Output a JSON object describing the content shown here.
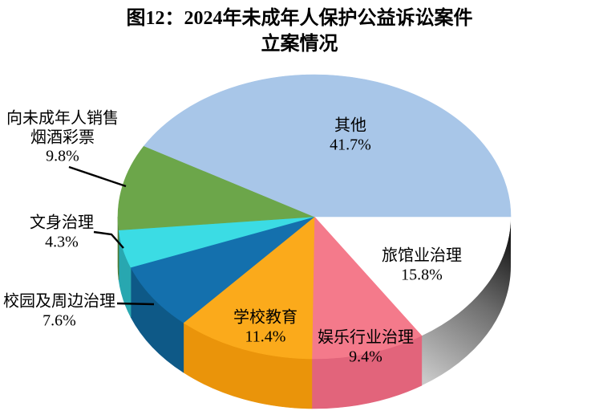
{
  "figure": {
    "title": "图12：2024年未成年人保护公益诉讼案件立案情况",
    "title_lines": [
      "图12：2024年未成年人保护公益诉讼案件",
      "立案情况"
    ]
  },
  "chart_data": {
    "type": "pie",
    "style": "3d",
    "title": "图12：2024年未成年人保护公益诉讼案件立案情况",
    "direction": "clockwise",
    "start_angle_deg": 0,
    "total": 100.0,
    "legend": "none",
    "slices": [
      {
        "id": "hotel",
        "label": "旅馆业治理",
        "label_lines": [
          "旅馆业治理"
        ],
        "value": 15.8,
        "pct_label": "15.8%",
        "color": "#FFFFFF",
        "side_color": "gray-gradient",
        "label_placement": "inside"
      },
      {
        "id": "entertainment",
        "label": "娱乐行业治理",
        "label_lines": [
          "娱乐行业治理"
        ],
        "value": 9.4,
        "pct_label": "9.4%",
        "color": "#F47A8B",
        "side_color": "#E2647B",
        "label_placement": "inside"
      },
      {
        "id": "school",
        "label": "学校教育",
        "label_lines": [
          "学校教育"
        ],
        "value": 11.4,
        "pct_label": "11.4%",
        "color": "#FBAA1B",
        "side_color": "#EA940A",
        "label_placement": "inside"
      },
      {
        "id": "campus",
        "label": "校园及周边治理",
        "label_lines": [
          "校园及周边治理"
        ],
        "value": 7.6,
        "pct_label": "7.6%",
        "color": "#1470AD",
        "side_color": "#0E5987",
        "label_placement": "outside-left"
      },
      {
        "id": "tattoo",
        "label": "文身治理",
        "label_lines": [
          "文身治理"
        ],
        "value": 4.3,
        "pct_label": "4.3%",
        "color": "#3BDCE4",
        "side_color": "#28A7B0",
        "label_placement": "outside-left"
      },
      {
        "id": "selling",
        "label": "向未成年人销售烟酒彩票",
        "label_lines": [
          "向未成年人销售",
          "烟酒彩票"
        ],
        "value": 9.8,
        "pct_label": "9.8%",
        "color": "#6CA64A",
        "side_color": "#4E7A32",
        "label_placement": "outside-left"
      },
      {
        "id": "other",
        "label": "其他",
        "label_lines": [
          "其他"
        ],
        "value": 41.7,
        "pct_label": "41.7%",
        "color": "#A8C6E8",
        "side_color": "#7FA5CF",
        "label_placement": "inside"
      }
    ]
  }
}
